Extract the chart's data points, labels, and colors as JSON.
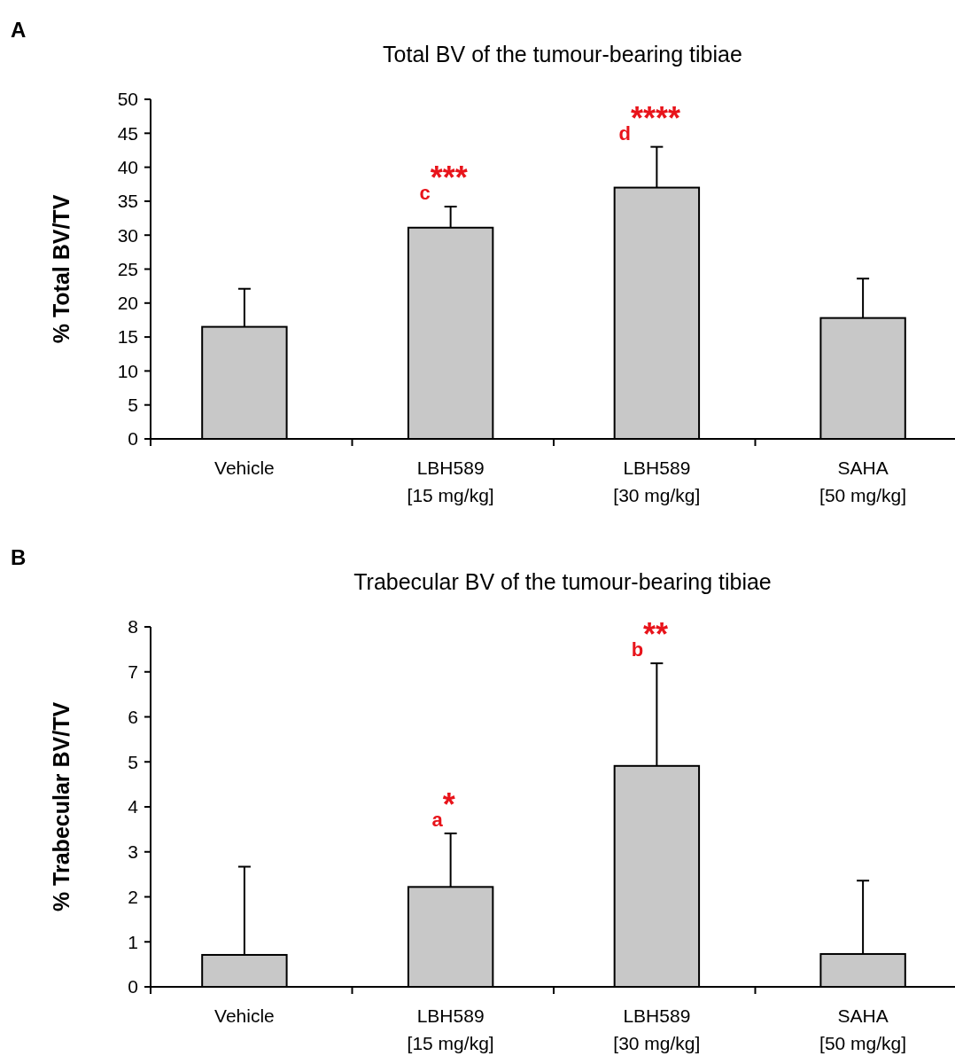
{
  "chart_data": [
    {
      "type": "bar",
      "title": "Total BV of the tumour-bearing tibiae",
      "ylabel": "% Total BV/TV",
      "categories": [
        "Vehicle",
        "LBH589\n[15 mg/kg]",
        "LBH589\n[30 mg/kg]",
        "SAHA\n[50 mg/kg]"
      ],
      "values": [
        16.5,
        31.1,
        37.0,
        17.8
      ],
      "errors": [
        [
          16.5,
          22.1
        ],
        [
          31.1,
          34.2
        ],
        [
          37.0,
          43.0
        ],
        [
          17.8,
          23.6
        ]
      ],
      "color": "#c8c8c8",
      "ylim": [
        0,
        50
      ],
      "yticks": [
        0,
        5,
        10,
        15,
        20,
        25,
        30,
        35,
        40,
        45,
        50
      ],
      "annotations": [
        "A",
        {
          "text": "c***",
          "x": "LBH589\n[15 mg/kg]",
          "y": 34.2
        },
        {
          "text": "d****",
          "x": "LBH589\n[30 mg/kg]",
          "y": 43.0
        }
      ]
    },
    {
      "type": "bar",
      "title": "Trabecular BV of the tumour-bearing tibiae",
      "ylabel": "% Trabecular BV/TV",
      "categories": [
        "Vehicle",
        "LBH589\n[15 mg/kg]",
        "LBH589\n[30 mg/kg]",
        "SAHA\n[50 mg/kg]"
      ],
      "values": [
        0.71,
        2.22,
        4.91,
        0.73
      ],
      "errors": [
        [
          0.71,
          2.67
        ],
        [
          2.22,
          3.41
        ],
        [
          4.91,
          7.19
        ],
        [
          0.73,
          2.36
        ]
      ],
      "color": "#c8c8c8",
      "ylim": [
        0,
        8
      ],
      "yticks": [
        0,
        1,
        2,
        3,
        4,
        5,
        6,
        7,
        8
      ],
      "annotations": [
        "B",
        {
          "text": "a*",
          "x": "LBH589\n[15 mg/kg]",
          "y": 3.41
        },
        {
          "text": "b**",
          "x": "LBH589\n[30 mg/kg]",
          "y": 7.19
        }
      ]
    }
  ]
}
